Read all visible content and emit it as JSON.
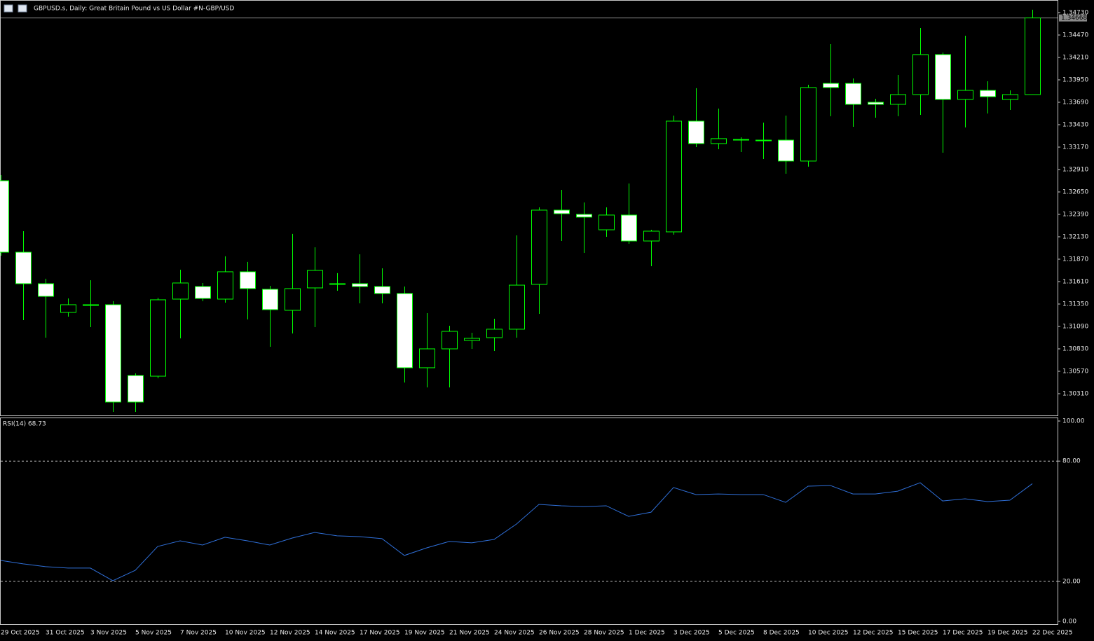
{
  "chart_data": [
    {
      "type": "candlestick",
      "title": "GBPUSD.s, Daily:  Great Britain Pound vs US Dollar #N-GBP/USD",
      "x": [
        "29 Oct 2025",
        null,
        "31 Oct 2025",
        null,
        "3 Nov 2025",
        null,
        "5 Nov 2025",
        null,
        "7 Nov 2025",
        null,
        "10 Nov 2025",
        null,
        "12 Nov 2025",
        null,
        "14 Nov 2025",
        null,
        "17 Nov 2025",
        null,
        "19 Nov 2025",
        null,
        "21 Nov 2025",
        null,
        "24 Nov 2025",
        null,
        "26 Nov 2025",
        null,
        "28 Nov 2025",
        null,
        "1 Dec 2025",
        null,
        "3 Dec 2025",
        null,
        "5 Dec 2025",
        null,
        "8 Dec 2025",
        null,
        "10 Dec 2025",
        null,
        "12 Dec 2025",
        null,
        "15 Dec 2025",
        null,
        "17 Dec 2025",
        null,
        "19 Dec 2025",
        null,
        "22 Dec 2025"
      ],
      "open": [
        1.3278,
        1.31951,
        1.31586,
        1.31253,
        1.31342,
        1.31342,
        1.30521,
        1.30513,
        1.31407,
        1.31553,
        1.31407,
        1.31724,
        1.31521,
        1.31277,
        1.31537,
        1.31578,
        1.31586,
        1.31553,
        1.31472,
        1.30611,
        1.3083,
        1.30928,
        1.3096,
        1.31058,
        1.31578,
        1.32439,
        1.3239,
        1.32211,
        1.32382,
        1.32081,
        1.32187,
        1.33471,
        1.33211,
        1.33259,
        1.33251,
        1.33251,
        1.33008,
        1.33909,
        1.33909,
        1.3369,
        1.33666,
        1.33779,
        1.34243,
        1.33723,
        1.33828,
        1.33723,
        1.33779
      ],
      "high": [
        1.32845,
        1.32195,
        1.31643,
        1.31415,
        1.31626,
        1.31383,
        1.30546,
        1.31423,
        1.31748,
        1.31594,
        1.31903,
        1.31838,
        1.31561,
        1.32163,
        1.32008,
        1.31708,
        1.31927,
        1.31764,
        1.31553,
        1.31244,
        1.31098,
        1.31017,
        1.31179,
        1.32146,
        1.32471,
        1.32674,
        1.32528,
        1.32471,
        1.32748,
        1.32211,
        1.33536,
        1.33853,
        1.33617,
        1.33284,
        1.33454,
        1.33536,
        1.33893,
        1.34364,
        1.33966,
        1.33731,
        1.34007,
        1.34551,
        1.34267,
        1.34462,
        1.33934,
        1.33828,
        1.34763
      ],
      "low": [
        1.31911,
        1.31163,
        1.3096,
        1.31204,
        1.31082,
        1.30099,
        1.30099,
        1.30489,
        1.30952,
        1.31383,
        1.31366,
        1.31171,
        1.30854,
        1.31009,
        1.31082,
        1.31504,
        1.31358,
        1.31358,
        1.3044,
        1.30383,
        1.30383,
        1.3083,
        1.30806,
        1.3096,
        1.31236,
        1.32081,
        1.31943,
        1.3213,
        1.32049,
        1.31789,
        1.32154,
        1.3317,
        1.33146,
        1.33113,
        1.33032,
        1.32861,
        1.32943,
        1.33528,
        1.33406,
        1.33511,
        1.33528,
        1.33544,
        1.33105,
        1.33398,
        1.3356,
        1.33601,
        1.33779
      ],
      "close": [
        1.31951,
        1.31586,
        1.31439,
        1.31342,
        1.31342,
        1.30213,
        1.30213,
        1.31399,
        1.31594,
        1.31415,
        1.31724,
        1.31529,
        1.31285,
        1.31529,
        1.3174,
        1.31586,
        1.31553,
        1.31472,
        1.30611,
        1.3083,
        1.31033,
        1.30952,
        1.31058,
        1.31569,
        1.32439,
        1.32398,
        1.32358,
        1.32382,
        1.32081,
        1.32195,
        1.33471,
        1.33211,
        1.33268,
        1.33259,
        1.33251,
        1.33008,
        1.33861,
        1.33861,
        1.33666,
        1.33666,
        1.33779,
        1.34243,
        1.33723,
        1.33828,
        1.33755,
        1.33779,
        1.34668
      ],
      "bull_color": "#000000",
      "bear_color": "#ffffff",
      "outline_color": "#00ff00",
      "last_price": 1.34668,
      "ylim": [
        1.30058,
        1.34868
      ],
      "yticks": [
        {
          "value": 1.3473,
          "label": "1.34730"
        },
        {
          "value": 1.3447,
          "label": "1.34470"
        },
        {
          "value": 1.3421,
          "label": "1.34210"
        },
        {
          "value": 1.3395,
          "label": "1.33950"
        },
        {
          "value": 1.3369,
          "label": "1.33690"
        },
        {
          "value": 1.3343,
          "label": "1.33430"
        },
        {
          "value": 1.3317,
          "label": "1.33170"
        },
        {
          "value": 1.3291,
          "label": "1.32910"
        },
        {
          "value": 1.3265,
          "label": "1.32650"
        },
        {
          "value": 1.3239,
          "label": "1.32390"
        },
        {
          "value": 1.3213,
          "label": "1.32130"
        },
        {
          "value": 1.3187,
          "label": "1.31870"
        },
        {
          "value": 1.3161,
          "label": "1.31610"
        },
        {
          "value": 1.3135,
          "label": "1.31350"
        },
        {
          "value": 1.3109,
          "label": "1.31090"
        },
        {
          "value": 1.3083,
          "label": "1.30830"
        },
        {
          "value": 1.3057,
          "label": "1.30570"
        },
        {
          "value": 1.3031,
          "label": "1.30310"
        }
      ]
    },
    {
      "type": "line",
      "title": "RSI(14) 68.73",
      "values": [
        30.4,
        28.7,
        27.3,
        26.6,
        26.6,
        20.3,
        25.5,
        37.4,
        40.2,
        38.1,
        42.0,
        40.2,
        38.1,
        41.6,
        44.4,
        42.7,
        42.3,
        41.3,
        32.9,
        36.7,
        39.9,
        39.2,
        40.9,
        48.6,
        58.4,
        57.7,
        57.3,
        57.7,
        52.4,
        54.5,
        66.8,
        63.3,
        63.6,
        63.3,
        63.3,
        59.4,
        67.5,
        67.8,
        63.6,
        63.6,
        65.0,
        69.2,
        60.1,
        61.2,
        59.8,
        60.5,
        68.73
      ],
      "color": "#2f6fd8",
      "levels": [
        80,
        20
      ],
      "ylim": [
        -1.4,
        101.4
      ],
      "yticks": [
        {
          "value": 100,
          "label": "100.00"
        },
        {
          "value": 80,
          "label": "80.00"
        },
        {
          "value": 20,
          "label": "20.00"
        },
        {
          "value": 0,
          "label": "0.00"
        }
      ]
    }
  ]
}
